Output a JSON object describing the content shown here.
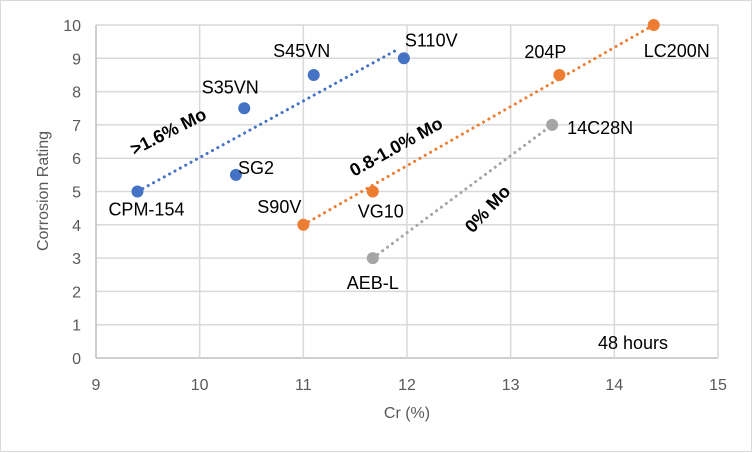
{
  "chart_data": {
    "type": "scatter",
    "title": "",
    "xlabel": "Cr (%)",
    "ylabel": "Corrosion Rating",
    "xlim": [
      9,
      15
    ],
    "ylim": [
      0,
      10
    ],
    "x_ticks": [
      9,
      10,
      11,
      12,
      13,
      14,
      15
    ],
    "y_ticks": [
      0,
      1,
      2,
      3,
      4,
      5,
      6,
      7,
      8,
      9,
      10
    ],
    "grid": true,
    "legend": "none",
    "annotation": "48 hours",
    "series": [
      {
        "name": ">1.6% Mo",
        "color": "#4472C4",
        "points": [
          {
            "label": "CPM-154",
            "x": 9.4,
            "y": 5.0
          },
          {
            "label": "SG2",
            "x": 10.35,
            "y": 5.5
          },
          {
            "label": "S35VN",
            "x": 10.43,
            "y": 7.5
          },
          {
            "label": "S45VN",
            "x": 11.1,
            "y": 8.5
          },
          {
            "label": "S110V",
            "x": 11.97,
            "y": 9.0
          }
        ],
        "trendline": {
          "style": "dotted",
          "from": [
            9.4,
            5.0
          ],
          "to": [
            11.93,
            9.3
          ]
        }
      },
      {
        "name": "0.8-1.0% Mo",
        "color": "#ED7D31",
        "points": [
          {
            "label": "S90V",
            "x": 11.0,
            "y": 4.0
          },
          {
            "label": "VG10",
            "x": 11.67,
            "y": 5.0
          },
          {
            "label": "204P",
            "x": 13.47,
            "y": 8.5
          },
          {
            "label": "LC200N",
            "x": 14.38,
            "y": 10.0
          }
        ],
        "trendline": {
          "style": "dotted",
          "from": [
            11.0,
            4.0
          ],
          "to": [
            14.38,
            10.0
          ]
        }
      },
      {
        "name": "0% Mo",
        "color": "#A5A5A5",
        "points": [
          {
            "label": "AEB-L",
            "x": 11.67,
            "y": 3.0
          },
          {
            "label": "14C28N",
            "x": 13.4,
            "y": 7.0
          }
        ],
        "trendline": {
          "style": "dotted",
          "from": [
            11.67,
            3.0
          ],
          "to": [
            13.4,
            7.0
          ]
        }
      }
    ]
  }
}
